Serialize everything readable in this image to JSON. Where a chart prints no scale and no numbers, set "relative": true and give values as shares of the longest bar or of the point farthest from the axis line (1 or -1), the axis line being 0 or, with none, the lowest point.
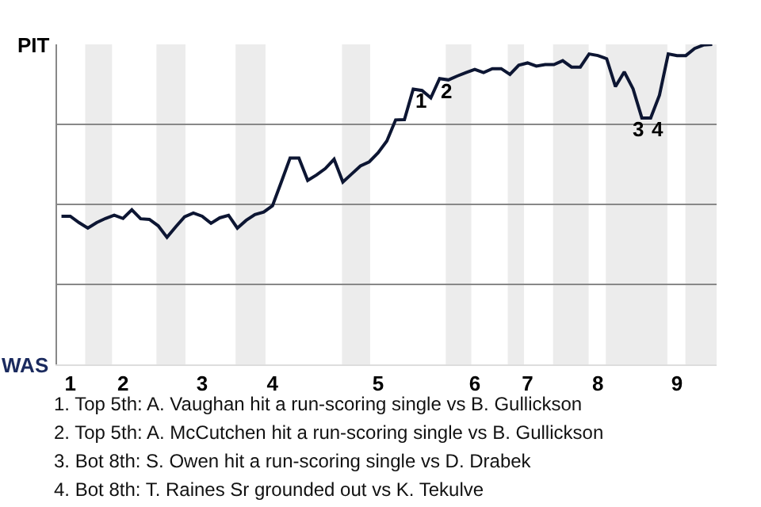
{
  "chart_data": {
    "type": "line",
    "relative": true,
    "categories": [
      null,
      "1",
      null,
      null,
      null,
      null,
      null,
      "2",
      null,
      null,
      null,
      null,
      null,
      null,
      null,
      null,
      "3",
      null,
      null,
      null,
      null,
      null,
      null,
      null,
      "4",
      null,
      null,
      null,
      null,
      null,
      null,
      null,
      null,
      null,
      null,
      null,
      "5",
      null,
      null,
      null,
      null,
      null,
      null,
      null,
      null,
      null,
      null,
      "6",
      null,
      null,
      null,
      null,
      null,
      "7",
      null,
      null,
      null,
      null,
      null,
      null,
      null,
      "8",
      null,
      null,
      null,
      null,
      null,
      null,
      null,
      null,
      "9",
      null,
      null,
      null,
      null
    ],
    "series": [
      {
        "color": "#0d1633",
        "values": [
          0.463,
          0.463,
          0.443,
          0.426,
          0.443,
          0.456,
          0.466,
          0.456,
          0.483,
          0.455,
          0.453,
          0.433,
          0.397,
          0.43,
          0.461,
          0.473,
          0.463,
          0.441,
          0.458,
          0.466,
          0.426,
          0.45,
          0.468,
          0.476,
          0.496,
          0.57,
          0.645,
          0.645,
          0.575,
          0.592,
          0.612,
          0.641,
          0.57,
          0.595,
          0.62,
          0.633,
          0.661,
          0.698,
          0.764,
          0.765,
          0.86,
          0.856,
          0.833,
          0.893,
          0.889,
          0.901,
          0.912,
          0.922,
          0.912,
          0.924,
          0.924,
          0.906,
          0.935,
          0.942,
          0.932,
          0.937,
          0.937,
          0.949,
          0.929,
          0.929,
          0.97,
          0.965,
          0.955,
          0.868,
          0.914,
          0.861,
          0.77,
          0.77,
          0.841,
          0.97,
          0.965,
          0.965,
          0.987,
          0.998,
          1
        ]
      }
    ],
    "grid": "y",
    "annotations": [
      {
        "text": "1",
        "y": 0.86
      },
      {
        "text": "2",
        "y": 0.893
      },
      {
        "text": "3",
        "y": 0.77
      },
      {
        "text": "4",
        "y": 0.77
      },
      "PIT",
      "WAS",
      "1. Top 5th: A. Vaughan hit a run-scoring single vs B. Gullickson",
      "2. Top 5th: A. McCutchen hit a run-scoring single vs B. Gullickson",
      "3. Bot 8th: S. Owen hit a run-scoring single vs D. Drabek",
      "4. Bot 8th: T. Raines Sr grounded out vs K. Tekulve"
    ]
  }
}
